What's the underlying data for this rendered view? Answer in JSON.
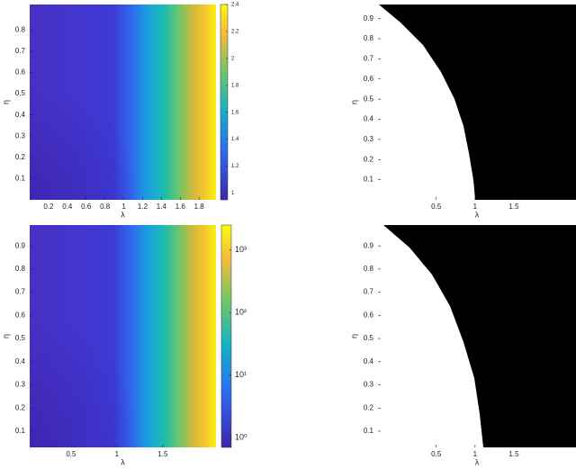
{
  "chart_data": [
    {
      "type": "heatmap",
      "xlabel": "λ",
      "ylabel": "η",
      "xlim": [
        0,
        1.98
      ],
      "ylim": [
        0,
        0.92
      ],
      "xticks": [
        0.2,
        0.4,
        0.6,
        0.8,
        1,
        1.2,
        1.4,
        1.6,
        1.8
      ],
      "yticks": [
        0.1,
        0.2,
        0.3,
        0.4,
        0.5,
        0.6,
        0.7,
        0.8
      ],
      "colorbar": {
        "ylim": [
          0.95,
          2.4
        ],
        "yticks": [
          1,
          1.2,
          1.4,
          1.6,
          1.8,
          2,
          2.2,
          2.4
        ]
      }
    },
    {
      "type": "binary",
      "xlabel": "λ",
      "ylabel": "η",
      "xlim": [
        -0.25,
        2.3
      ],
      "ylim": [
        0,
        0.97
      ],
      "xticks": [
        0.5,
        1,
        1.5
      ],
      "yticks": [
        0.1,
        0.2,
        0.3,
        0.4,
        0.5,
        0.6,
        0.7,
        0.8,
        0.9
      ]
    },
    {
      "type": "heatmap",
      "xlabel": "λ",
      "ylabel": "η",
      "xlim": [
        0.05,
        2.08
      ],
      "ylim": [
        0.03,
        0.99
      ],
      "xticks": [
        0.5,
        1,
        1.5
      ],
      "yticks": [
        0.1,
        0.2,
        0.3,
        0.4,
        0.5,
        0.6,
        0.7,
        0.8,
        0.9
      ],
      "colorbar": {
        "log_scale": true,
        "ylim": [
          0.7,
          2500
        ],
        "yticks": [
          {
            "value": 1,
            "label": "10⁰"
          },
          {
            "value": 10,
            "label": "10¹"
          },
          {
            "value": 100,
            "label": "10²"
          },
          {
            "value": 1000,
            "label": "10³"
          }
        ]
      }
    },
    {
      "type": "binary",
      "xlabel": "λ",
      "ylabel": "η",
      "xlim": [
        -0.25,
        2.3
      ],
      "ylim": [
        0.03,
        0.99
      ],
      "xticks": [
        0.5,
        1,
        1.5
      ],
      "yticks": [
        0.1,
        0.2,
        0.3,
        0.4,
        0.5,
        0.6,
        0.7,
        0.8,
        0.9
      ]
    }
  ]
}
